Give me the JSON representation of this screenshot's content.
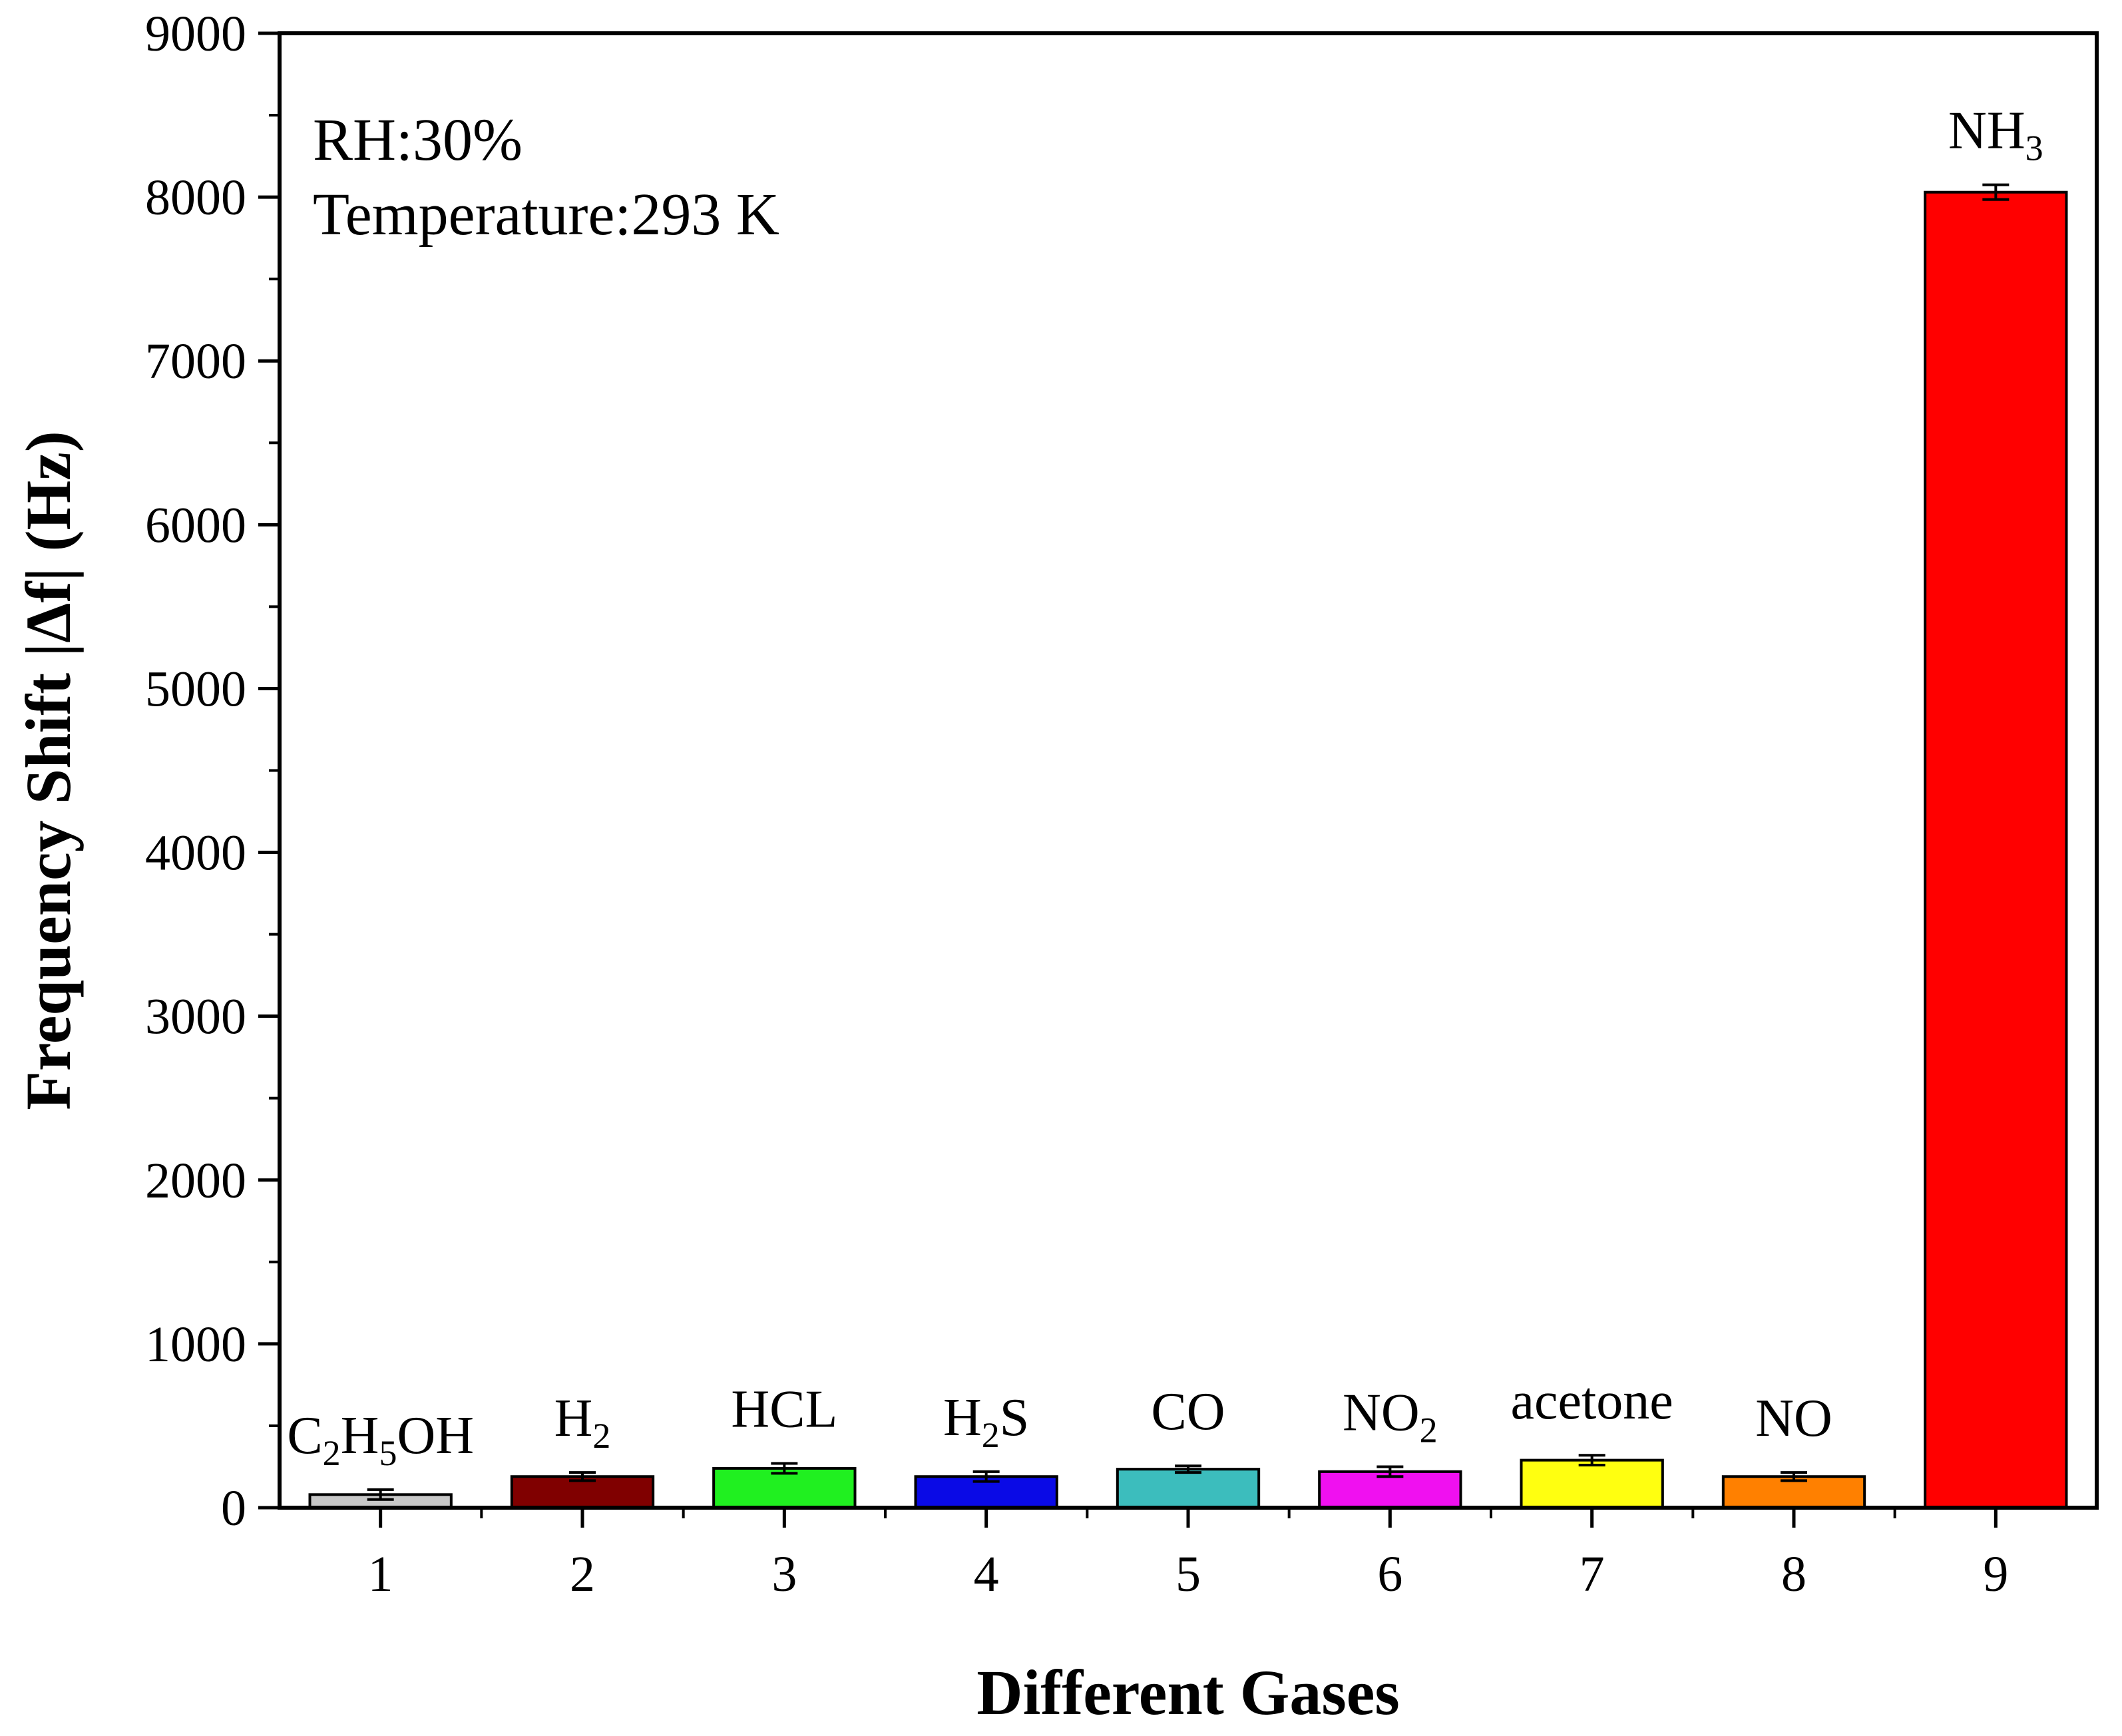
{
  "chart_data": {
    "type": "bar",
    "categories": [
      "1",
      "2",
      "3",
      "4",
      "5",
      "6",
      "7",
      "8",
      "9"
    ],
    "values": [
      80,
      190,
      240,
      190,
      235,
      220,
      290,
      190,
      8030
    ],
    "errors": [
      30,
      25,
      30,
      30,
      20,
      30,
      30,
      25,
      45
    ],
    "bar_labels": [
      {
        "text": "C",
        "parts": [
          {
            "t": "C",
            "sub": false
          },
          {
            "t": "2",
            "sub": true
          },
          {
            "t": "H",
            "sub": false
          },
          {
            "t": "5",
            "sub": true
          },
          {
            "t": "OH",
            "sub": false
          }
        ]
      },
      {
        "text": "H",
        "parts": [
          {
            "t": "H",
            "sub": false
          },
          {
            "t": "2",
            "sub": true
          }
        ]
      },
      {
        "text": "HCL",
        "parts": [
          {
            "t": "HCL",
            "sub": false
          }
        ]
      },
      {
        "text": "H",
        "parts": [
          {
            "t": "H",
            "sub": false
          },
          {
            "t": "2",
            "sub": true
          },
          {
            "t": "S",
            "sub": false
          }
        ]
      },
      {
        "text": "CO",
        "parts": [
          {
            "t": "CO",
            "sub": false
          }
        ]
      },
      {
        "text": "NO",
        "parts": [
          {
            "t": "NO",
            "sub": false
          },
          {
            "t": "2",
            "sub": true
          }
        ]
      },
      {
        "text": "acetone",
        "parts": [
          {
            "t": "acetone",
            "sub": false
          }
        ]
      },
      {
        "text": "NO",
        "parts": [
          {
            "t": "NO",
            "sub": false
          }
        ]
      },
      {
        "text": "NH",
        "parts": [
          {
            "t": "NH",
            "sub": false
          },
          {
            "t": "3",
            "sub": true
          }
        ]
      }
    ],
    "colors": [
      "#c8c8c8",
      "#800000",
      "#20f020",
      "#0a0ae6",
      "#3cbdbd",
      "#f010f0",
      "#ffff10",
      "#ff8000",
      "#ff0000"
    ],
    "ylim": [
      0,
      9000
    ],
    "yticks": [
      0,
      1000,
      2000,
      3000,
      4000,
      5000,
      6000,
      7000,
      8000,
      9000
    ],
    "xlabel": "Different Gases",
    "ylabel": "Frequency Shift |Δf| (Hz)",
    "annotations": [
      "RH:30%",
      "Temperature:293 K"
    ],
    "grid": false,
    "legend": "none"
  }
}
